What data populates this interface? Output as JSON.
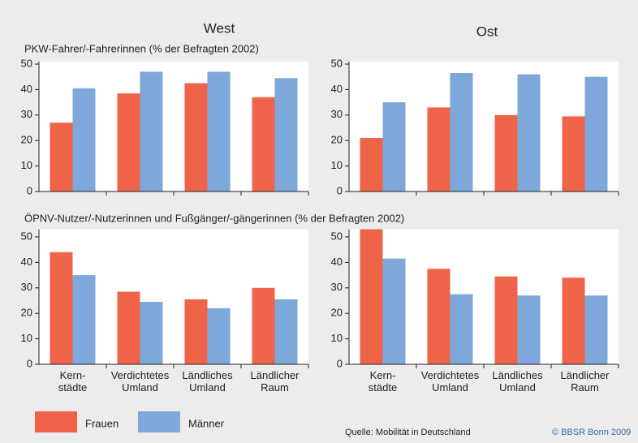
{
  "column_titles": [
    "West",
    "Ost"
  ],
  "section_titles": [
    "PKW-Fahrer/-Fahrerinnen (% der Befragten 2002)",
    "ÖPNV-Nutzer/-Nutzerinnen und Fußgänger/-gängerinnen (% der Befragten 2002)"
  ],
  "source": "Quelle: Mobilität in Deutschland",
  "copyright": "© BBSR Bonn 2009",
  "chart_data": [
    {
      "type": "bar",
      "categories": [
        null,
        null,
        null,
        null
      ],
      "series": [
        {
          "name": "Frauen",
          "color": "#ef6448",
          "values": [
            27,
            38.5,
            42.5,
            37
          ]
        },
        {
          "name": "Männer",
          "color": "#7ea7da",
          "values": [
            40.5,
            47,
            47,
            44.5
          ]
        }
      ],
      "ylim": [
        0,
        51
      ],
      "yticks": [
        0,
        10,
        20,
        30,
        40,
        50
      ]
    },
    {
      "type": "bar",
      "categories": [
        null,
        null,
        null,
        null
      ],
      "series": [
        {
          "color": "#ef6448",
          "values": [
            21,
            33,
            30,
            29.5
          ]
        },
        {
          "color": "#7ea7da",
          "values": [
            35,
            46.5,
            46,
            45
          ]
        }
      ],
      "ylim": [
        0,
        51
      ],
      "yticks": [
        0,
        10,
        20,
        30,
        40,
        50
      ]
    },
    {
      "type": "bar",
      "categories": [
        "Kern-\nstädte",
        "Verdichtetes\nUmland",
        "Ländliches\nUmland",
        "Ländlicher\nRaum"
      ],
      "series": [
        {
          "color": "#ef6448",
          "values": [
            44,
            28.5,
            25.5,
            30
          ]
        },
        {
          "color": "#7ea7da",
          "values": [
            35,
            24.5,
            22,
            25.5
          ]
        }
      ],
      "ylim": [
        0,
        53
      ],
      "yticks": [
        0,
        10,
        20,
        30,
        40,
        50
      ]
    },
    {
      "type": "bar",
      "categories": [
        "Kern-\nstädte",
        "Verdichtetes\nUmland",
        "Ländliches\nUmland",
        "Ländlicher\nRaum"
      ],
      "series": [
        {
          "color": "#ef6448",
          "values": [
            53,
            37.5,
            34.5,
            34
          ]
        },
        {
          "color": "#7ea7da",
          "values": [
            41.5,
            27.5,
            27,
            27
          ]
        }
      ],
      "ylim": [
        0,
        53
      ],
      "yticks": [
        0,
        10,
        20,
        30,
        40,
        50
      ]
    }
  ]
}
